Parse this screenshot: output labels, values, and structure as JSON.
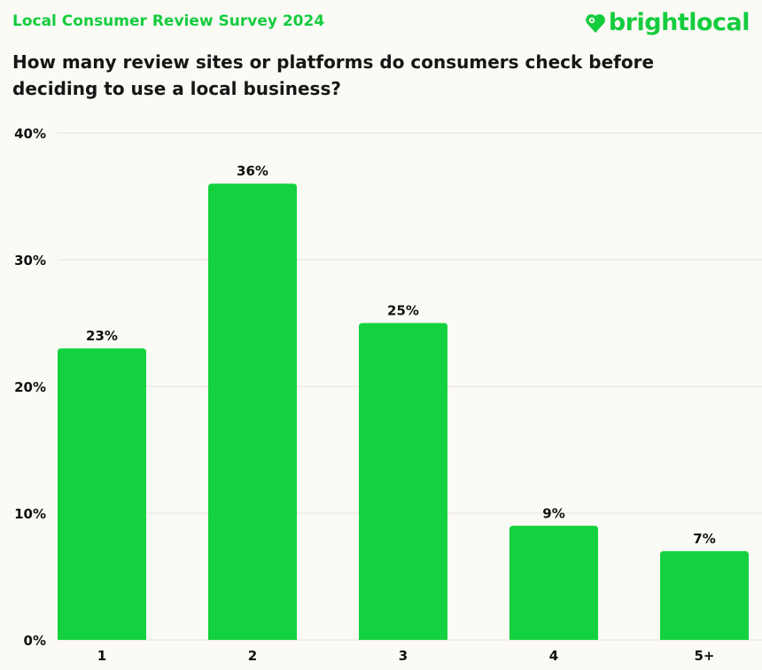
{
  "header": {
    "survey_title": "Local Consumer Review Survey 2024",
    "question": "How many review sites or platforms do consumers check before deciding to use a local business?",
    "logo_text": "brightlocal",
    "logo_icon": "heart-location-pin-icon"
  },
  "colors": {
    "brand": "#14d23f",
    "background": "#fbfaf5",
    "grid": "#e4e3de"
  },
  "chart_data": {
    "type": "bar",
    "title": "How many review sites or platforms do consumers check before deciding to use a local business?",
    "categories": [
      "1",
      "2",
      "3",
      "4",
      "5+"
    ],
    "values": [
      23,
      36,
      25,
      9,
      7
    ],
    "data_labels": [
      "23%",
      "36%",
      "25%",
      "9%",
      "7%"
    ],
    "ylim": [
      0,
      40
    ],
    "yticks": [
      0,
      10,
      20,
      30,
      40
    ],
    "ytick_labels": [
      "0%",
      "10%",
      "20%",
      "30%",
      "40%"
    ],
    "grid": true,
    "legend": "none"
  }
}
